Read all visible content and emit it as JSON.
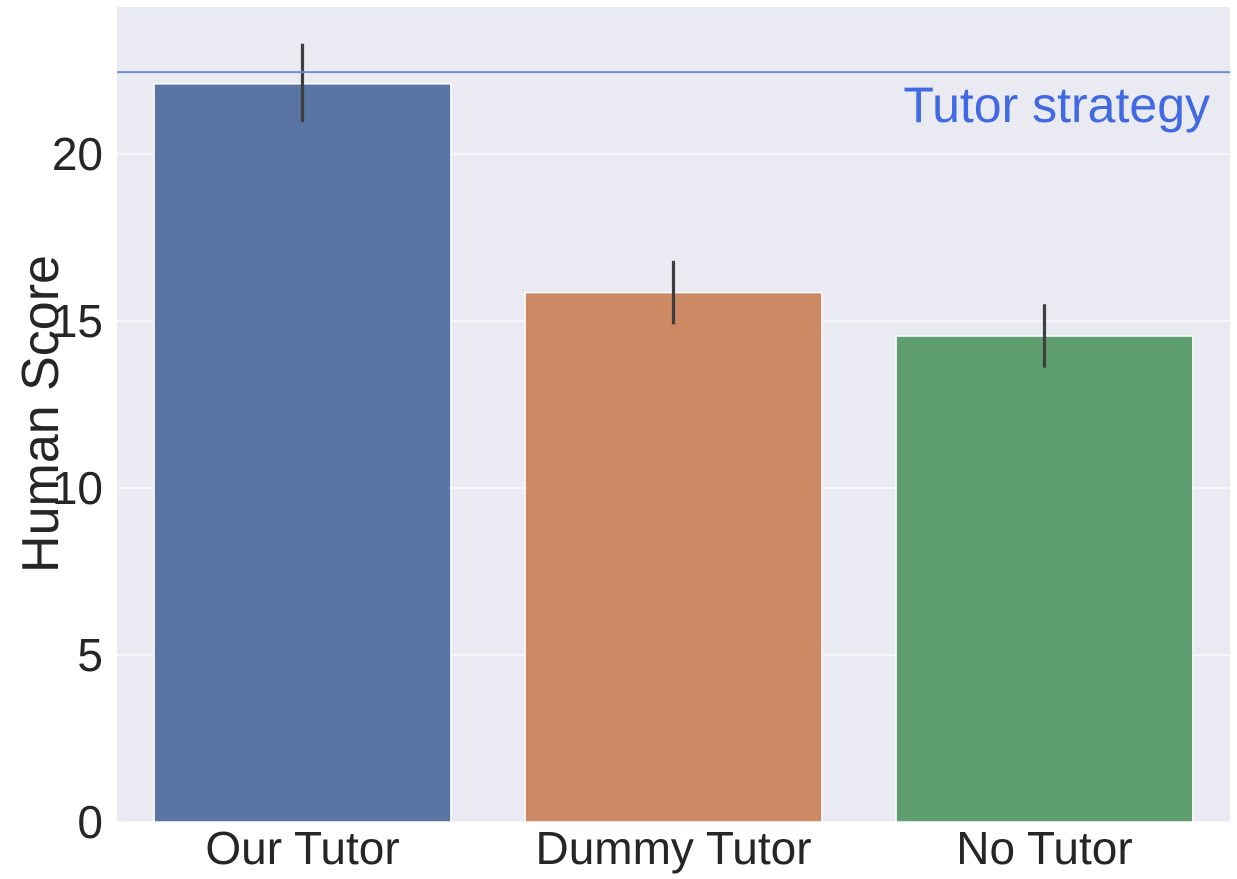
{
  "chart_data": {
    "type": "bar",
    "title": "",
    "xlabel": "",
    "ylabel": "Human Score",
    "categories": [
      "Our Tutor",
      "Dummy Tutor",
      "No Tutor"
    ],
    "values": [
      22.1,
      15.85,
      14.55
    ],
    "error_low": [
      20.95,
      14.9,
      13.6
    ],
    "error_high": [
      23.3,
      16.8,
      15.5
    ],
    "colors": [
      "#5975a4",
      "#cc8963",
      "#5f9e6e"
    ],
    "ylim": [
      0,
      24.4
    ],
    "yticks": [
      0,
      5,
      10,
      15,
      20
    ],
    "grid": true,
    "background": "#eaeaf2",
    "reference_line": {
      "value": 22.45,
      "label": "Tutor strategy",
      "color": "#4169e1"
    },
    "error_bar_color": "#3f3f3f"
  }
}
